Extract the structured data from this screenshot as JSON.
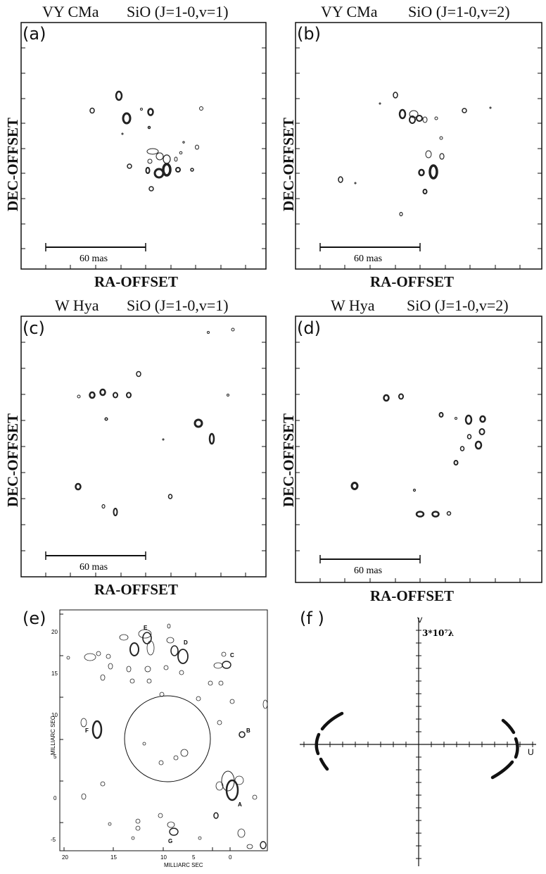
{
  "panels": {
    "a": {
      "label": "(a)",
      "title_star": "VY CMa",
      "title_line": "SiO (J=1-0,v=1)",
      "xlabel": "RA-OFFSET",
      "ylabel": "DEC-OFFSET",
      "scale": "60 mas"
    },
    "b": {
      "label": "(b)",
      "title_star": "VY CMa",
      "title_line": "SiO (J=1-0,v=2)",
      "xlabel": "RA-OFFSET",
      "ylabel": "DEC-OFFSET",
      "scale": "60 mas"
    },
    "c": {
      "label": "(c)",
      "title_star": "W Hya",
      "title_line": "SiO (J=1-0,v=1)",
      "xlabel": "RA-OFFSET",
      "ylabel": "DEC-OFFSET",
      "scale": "60 mas"
    },
    "d": {
      "label": "(d)",
      "title_star": "W Hya",
      "title_line": "SiO (J=1-0,v=2)",
      "xlabel": "RA-OFFSET",
      "ylabel": "DEC-OFFSET",
      "scale": "60 mas"
    },
    "e": {
      "label": "(e)",
      "xlabel": "MILLIARC SEC",
      "ylabel": "MILLIARC SEC",
      "xticks": [
        "20",
        "15",
        "10",
        "5",
        "0"
      ],
      "yticks": [
        "20",
        "15",
        "10",
        "5",
        "0",
        "-5"
      ],
      "spot_labels": [
        "E",
        "D",
        "C",
        "F",
        "B",
        "A",
        "G"
      ]
    },
    "f": {
      "label": "(f )",
      "v_label": "V",
      "u_label": "U",
      "scale_label": "3*10⁷λ"
    }
  }
}
